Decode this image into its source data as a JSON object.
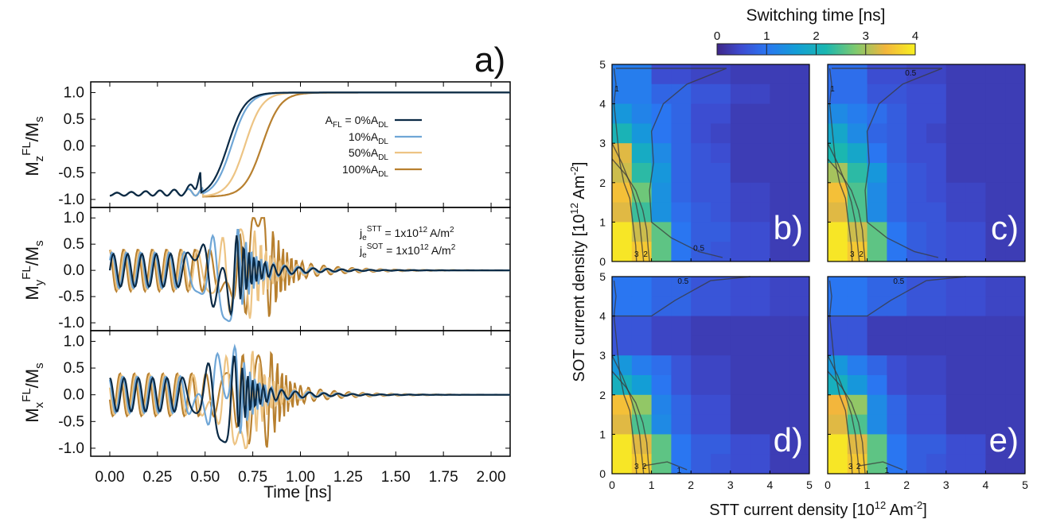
{
  "figure": {
    "panel_a_label": "a)",
    "colorbar_title": "Switching time [ns]",
    "colorbar_ticks": [
      "0",
      "1",
      "2",
      "3",
      "4"
    ],
    "heatmap_xlabel": "STT current density [10",
    "heatmap_xlabel_exp": "12",
    "heatmap_xlabel_tail": " Am",
    "heatmap_xlabel_exp2": "-2",
    "heatmap_xlabel_end": "]",
    "heatmap_ylabel": "SOT current density [10",
    "heatmap_ylabel_exp": "12",
    "heatmap_ylabel_tail": " Am",
    "heatmap_ylabel_exp2": "-2",
    "heatmap_ylabel_end": "]"
  },
  "chart_data": [
    {
      "type": "line",
      "panel": "a-top",
      "ylabel": "M_z^FL/M_s",
      "ylim": [
        -1.15,
        1.2
      ],
      "yticks": [
        "1.0",
        "0.5",
        "0.0",
        "-0.5",
        "-1.0"
      ],
      "legend_placement": "top-right",
      "legend": [
        {
          "label_main": "A",
          "label_sub": "FL",
          "label_rest": " =   0%A",
          "label_sub2": "DL",
          "color": "#0b2a45"
        },
        {
          "label_main": "",
          "label_sub": "",
          "label_rest": "10%A",
          "label_sub2": "DL",
          "color": "#6fa6d6"
        },
        {
          "label_main": "",
          "label_sub": "",
          "label_rest": "50%A",
          "label_sub2": "DL",
          "color": "#edc484"
        },
        {
          "label_main": "",
          "label_sub": "",
          "label_rest": "100%A",
          "label_sub2": "DL",
          "color": "#b8802f"
        }
      ],
      "series": [
        {
          "name": "0%",
          "switch_t": 0.62,
          "width": 0.085,
          "osc_end": 0.48
        },
        {
          "name": "10%",
          "switch_t": 0.64,
          "width": 0.085,
          "osc_end": 0.49
        },
        {
          "name": "50%",
          "switch_t": 0.71,
          "width": 0.085,
          "osc_end": 0.49
        },
        {
          "name": "100%",
          "switch_t": 0.8,
          "width": 0.09,
          "osc_end": 0.49
        }
      ]
    },
    {
      "type": "line",
      "panel": "a-middle",
      "ylabel": "M_y^FL/M_s",
      "ylim": [
        -1.15,
        1.2
      ],
      "yticks": [
        "1.0",
        "0.5",
        "0.0",
        "-0.5",
        "-1.0"
      ],
      "annotations": [
        {
          "main": "j",
          "sub": "e",
          "sup": "STT",
          "rest": " = 1x10",
          "sup2": "12",
          "rest2": " A/m",
          "sup3": "2"
        },
        {
          "main": "j",
          "sub": "e",
          "sup": "SOT",
          "rest": " = 1x10",
          "sup2": "12",
          "rest2": " A/m",
          "sup3": "2"
        }
      ]
    },
    {
      "type": "line",
      "panel": "a-bottom",
      "ylabel": "M_x^FL/M_s",
      "ylim": [
        -1.15,
        1.2
      ],
      "yticks": [
        "1.0",
        "0.5",
        "0.0",
        "-0.5",
        "-1.0"
      ],
      "xlabel": "Time [ns]",
      "xlim": [
        -0.1,
        2.1
      ],
      "xticks": [
        "0.00",
        "0.25",
        "0.50",
        "0.75",
        "1.00",
        "1.25",
        "1.50",
        "1.75",
        "2.00"
      ]
    },
    {
      "type": "heatmap",
      "panel_labels": [
        "b)",
        "c)",
        "d)",
        "e)"
      ],
      "x_ticks": [
        "0",
        "1",
        "2",
        "3",
        "4",
        "5"
      ],
      "y_ticks": [
        "0",
        "1",
        "2",
        "3",
        "4",
        "5"
      ],
      "xlim": [
        0,
        5
      ],
      "ylim": [
        0,
        5
      ],
      "colorbar_range": [
        0,
        4
      ],
      "cell_size": 0.5,
      "contour_labels": {
        "b": [
          "1",
          "3",
          "2",
          "0.5"
        ],
        "c": [
          "1",
          "0.5",
          "3",
          "2"
        ],
        "d": [
          "0.5",
          "3",
          "2",
          "1"
        ],
        "e": [
          "0.5",
          "3",
          "2",
          "1"
        ]
      },
      "panels": [
        {
          "name": "b",
          "rows_top_to_bottom": [
            [
              1.1,
              1.1,
              0.5,
              0.5,
              0.4,
              0.4,
              0.3,
              0.3,
              0.3,
              0.3
            ],
            [
              1.1,
              1.1,
              0.8,
              0.8,
              0.6,
              0.6,
              0.4,
              0.4,
              0.3,
              0.3
            ],
            [
              1.5,
              1.2,
              1.0,
              0.8,
              0.5,
              0.5,
              0.3,
              0.3,
              0.3,
              0.3
            ],
            [
              2.1,
              1.5,
              1.0,
              0.8,
              0.5,
              0.4,
              0.3,
              0.3,
              0.3,
              0.3
            ],
            [
              3.3,
              1.9,
              1.3,
              0.8,
              0.6,
              0.5,
              0.3,
              0.3,
              0.3,
              0.3
            ],
            [
              3.2,
              2.3,
              1.5,
              0.8,
              0.6,
              0.6,
              0.3,
              0.3,
              0.3,
              0.3
            ],
            [
              3.5,
              2.7,
              1.4,
              0.8,
              0.6,
              0.6,
              0.4,
              0.4,
              0.3,
              0.3
            ],
            [
              3.3,
              2.4,
              1.4,
              0.9,
              0.7,
              0.6,
              0.4,
              0.4,
              0.3,
              0.3
            ],
            [
              3.9,
              3.2,
              2.6,
              1.0,
              0.7,
              0.7,
              0.5,
              0.5,
              0.3,
              0.3
            ],
            [
              3.9,
              3.6,
              2.6,
              1.0,
              0.7,
              0.6,
              0.5,
              0.5,
              0.3,
              0.3
            ]
          ]
        },
        {
          "name": "c",
          "rows_top_to_bottom": [
            [
              0.9,
              0.9,
              0.5,
              0.5,
              0.4,
              0.4,
              0.3,
              0.3,
              0.3,
              0.3
            ],
            [
              0.9,
              0.9,
              0.6,
              0.6,
              0.5,
              0.5,
              0.3,
              0.3,
              0.3,
              0.3
            ],
            [
              1.3,
              1.1,
              0.9,
              0.7,
              0.5,
              0.5,
              0.3,
              0.3,
              0.3,
              0.3
            ],
            [
              1.8,
              1.3,
              0.8,
              0.7,
              0.5,
              0.4,
              0.3,
              0.3,
              0.3,
              0.3
            ],
            [
              2.2,
              1.8,
              1.0,
              0.7,
              0.5,
              0.5,
              0.3,
              0.3,
              0.3,
              0.3
            ],
            [
              3.0,
              2.3,
              1.5,
              0.8,
              0.6,
              0.5,
              0.3,
              0.3,
              0.3,
              0.3
            ],
            [
              3.5,
              2.5,
              1.3,
              0.8,
              0.6,
              0.5,
              0.4,
              0.4,
              0.3,
              0.3
            ],
            [
              3.3,
              2.5,
              1.3,
              0.8,
              0.6,
              0.6,
              0.4,
              0.4,
              0.3,
              0.3
            ],
            [
              3.9,
              3.2,
              2.6,
              1.0,
              0.7,
              0.6,
              0.5,
              0.5,
              0.3,
              0.3
            ],
            [
              3.9,
              3.6,
              2.6,
              1.0,
              0.7,
              0.6,
              0.5,
              0.5,
              0.3,
              0.3
            ]
          ]
        },
        {
          "name": "d",
          "rows_top_to_bottom": [
            [
              1.0,
              1.0,
              0.8,
              0.8,
              0.6,
              0.6,
              0.5,
              0.5,
              0.4,
              0.4
            ],
            [
              1.0,
              1.0,
              0.8,
              0.8,
              0.6,
              0.6,
              0.5,
              0.5,
              0.4,
              0.4
            ],
            [
              0.6,
              0.6,
              0.4,
              0.4,
              0.3,
              0.3,
              0.3,
              0.3,
              0.3,
              0.3
            ],
            [
              0.6,
              0.6,
              0.4,
              0.4,
              0.3,
              0.3,
              0.3,
              0.3,
              0.3,
              0.3
            ],
            [
              1.5,
              1.1,
              0.9,
              0.6,
              0.4,
              0.4,
              0.3,
              0.3,
              0.3,
              0.3
            ],
            [
              2.0,
              1.6,
              1.0,
              0.6,
              0.4,
              0.4,
              0.3,
              0.3,
              0.3,
              0.3
            ],
            [
              3.5,
              2.9,
              1.2,
              0.8,
              0.5,
              0.5,
              0.3,
              0.3,
              0.3,
              0.3
            ],
            [
              3.3,
              2.5,
              1.3,
              0.8,
              0.5,
              0.5,
              0.3,
              0.3,
              0.3,
              0.3
            ],
            [
              3.9,
              3.3,
              2.6,
              1.0,
              0.7,
              0.7,
              0.5,
              0.5,
              0.3,
              0.3
            ],
            [
              3.9,
              3.6,
              2.6,
              1.0,
              0.7,
              0.6,
              0.5,
              0.5,
              0.3,
              0.3
            ]
          ]
        },
        {
          "name": "e",
          "rows_top_to_bottom": [
            [
              1.0,
              1.0,
              0.8,
              0.8,
              0.6,
              0.6,
              0.5,
              0.5,
              0.4,
              0.4
            ],
            [
              1.0,
              1.0,
              0.8,
              0.8,
              0.6,
              0.6,
              0.5,
              0.5,
              0.4,
              0.4
            ],
            [
              0.6,
              0.6,
              0.3,
              0.3,
              0.3,
              0.3,
              0.3,
              0.3,
              0.3,
              0.3
            ],
            [
              0.6,
              0.6,
              0.3,
              0.3,
              0.3,
              0.3,
              0.3,
              0.3,
              0.3,
              0.3
            ],
            [
              1.5,
              1.1,
              0.8,
              0.5,
              0.4,
              0.4,
              0.3,
              0.3,
              0.3,
              0.3
            ],
            [
              2.0,
              1.5,
              1.0,
              0.5,
              0.4,
              0.4,
              0.3,
              0.3,
              0.3,
              0.3
            ],
            [
              3.4,
              2.9,
              1.3,
              0.8,
              0.5,
              0.5,
              0.3,
              0.3,
              0.3,
              0.3
            ],
            [
              3.3,
              2.5,
              1.3,
              0.8,
              0.5,
              0.5,
              0.3,
              0.3,
              0.3,
              0.3
            ],
            [
              3.9,
              3.3,
              2.6,
              1.0,
              0.7,
              0.7,
              0.5,
              0.5,
              0.3,
              0.3
            ],
            [
              3.9,
              3.6,
              2.6,
              1.0,
              0.7,
              0.6,
              0.5,
              0.5,
              0.3,
              0.3
            ]
          ]
        }
      ]
    }
  ]
}
